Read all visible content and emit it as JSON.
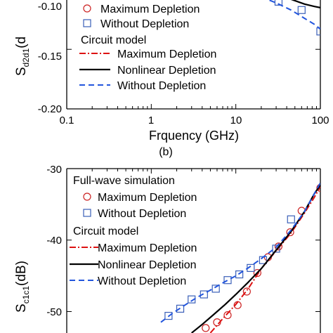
{
  "chart_data": [
    {
      "type": "line",
      "panel_label": "(b)",
      "xlabel": "Frquency (GHz)",
      "ylabel_main": "S",
      "ylabel_sub": "d2d1",
      "ylabel_unit_visible": "(d",
      "x_scale": "log",
      "xlim": [
        0.1,
        100
      ],
      "ylim": [
        -0.2,
        -0.085
      ],
      "x_ticks": [
        "0.1",
        "1",
        "10",
        "100"
      ],
      "y_ticks": [
        "-0.10",
        "-0.15",
        "-0.20"
      ],
      "legend": {
        "group1_title": "",
        "group1": [
          "Maximum Depletion",
          "Without Depletion"
        ],
        "group2_title": "Circuit model",
        "group2": [
          "Maximum Depletion",
          "Nonlinear Depletion",
          "Without Depletion"
        ]
      },
      "series": [
        {
          "name": "Maximum Depletion",
          "kind": "full-wave",
          "marker": "circle",
          "color": "#cc2222",
          "x": [
            80
          ],
          "y": [
            -0.097
          ]
        },
        {
          "name": "Without Depletion",
          "kind": "full-wave",
          "marker": "square",
          "color": "#3a5fb8",
          "x": [
            10,
            18,
            32,
            60,
            100
          ],
          "y": [
            -0.096,
            -0.104,
            -0.11,
            -0.117,
            -0.135
          ]
        },
        {
          "name": "Maximum Depletion",
          "kind": "circuit",
          "style": "dash-dot",
          "color": "#dd1111",
          "x": [
            40,
            55,
            75,
            100
          ],
          "y": [
            -0.094,
            -0.099,
            -0.103,
            -0.107
          ]
        },
        {
          "name": "Nonlinear Depletion",
          "kind": "circuit",
          "style": "solid",
          "color": "#000000",
          "x": [
            12,
            20,
            30,
            45,
            65,
            85,
            100
          ],
          "y": [
            -0.092,
            -0.097,
            -0.102,
            -0.108,
            -0.112,
            -0.114,
            -0.115
          ]
        },
        {
          "name": "Without Depletion",
          "kind": "circuit",
          "style": "dashed",
          "color": "#2255dd",
          "x": [
            10,
            14,
            20,
            30,
            45,
            65,
            85,
            100
          ],
          "y": [
            -0.097,
            -0.102,
            -0.106,
            -0.111,
            -0.117,
            -0.124,
            -0.129,
            -0.133
          ]
        }
      ]
    },
    {
      "type": "line",
      "ylabel_main": "S",
      "ylabel_sub": "c1c1",
      "ylabel_unit": "(dB)",
      "x_scale": "log",
      "xlim": [
        0.1,
        100
      ],
      "ylim": [
        -53,
        -30
      ],
      "y_ticks": [
        "-30",
        "-40",
        "-50"
      ],
      "legend": {
        "group1_title": "Full-wave simulation",
        "group1": [
          "Maximum Depletion",
          "Without Depletion"
        ],
        "group2_title": "Circuit model",
        "group2": [
          "Maximum Depletion",
          "Nonlinear Depletion",
          "Without Depletion"
        ]
      },
      "series": [
        {
          "name": "Maximum Depletion",
          "kind": "full-wave",
          "marker": "circle",
          "color": "#cc2222",
          "x": [
            4.4,
            6.0,
            8.0,
            10.5,
            13.5,
            18.0,
            24.0,
            32.0,
            44.0,
            60.0,
            100.0
          ],
          "y": [
            -52.3,
            -51.5,
            -50.5,
            -49.1,
            -47.2,
            -44.6,
            -42.4,
            -40.9,
            -38.9,
            -35.9,
            -32.7
          ]
        },
        {
          "name": "Without Depletion",
          "kind": "full-wave",
          "marker": "square",
          "color": "#3a5fb8",
          "x": [
            1.6,
            2.2,
            3.0,
            4.2,
            5.8,
            8.0,
            11.0,
            15.0,
            21.0,
            30.0,
            45.0
          ],
          "y": [
            -50.6,
            -49.6,
            -48.3,
            -47.6,
            -46.8,
            -45.6,
            -44.8,
            -43.9,
            -42.8,
            -41.2,
            -37.1
          ]
        },
        {
          "name": "Maximum Depletion",
          "kind": "circuit",
          "style": "dash-dot",
          "color": "#dd1111",
          "x": [
            5.0,
            7.0,
            10.0,
            14.0,
            20.0,
            30.0,
            45.0,
            65.0,
            85.0,
            100.0
          ],
          "y": [
            -53.0,
            -51.0,
            -49.0,
            -46.8,
            -44.0,
            -41.5,
            -39.0,
            -36.2,
            -34.0,
            -32.5
          ]
        },
        {
          "name": "Nonlinear Depletion",
          "kind": "circuit",
          "style": "solid",
          "color": "#000000",
          "x": [
            3.0,
            4.0,
            5.5,
            7.5,
            10.0,
            14.0,
            20.0,
            30.0,
            45.0,
            65.0,
            85.0,
            100.0
          ],
          "y": [
            -53.0,
            -51.8,
            -50.4,
            -49.0,
            -47.6,
            -45.9,
            -44.0,
            -41.4,
            -38.8,
            -36.0,
            -33.5,
            -32.3
          ]
        },
        {
          "name": "Without Depletion",
          "kind": "circuit",
          "style": "dashed",
          "color": "#2255dd",
          "x": [
            1.3,
            1.8,
            2.5,
            3.5,
            5.0,
            7.0,
            10.0,
            14.0,
            20.0,
            30.0,
            45.0,
            65.0,
            85.0,
            100.0
          ],
          "y": [
            -51.5,
            -50.2,
            -49.1,
            -48.0,
            -47.0,
            -46.0,
            -45.0,
            -43.9,
            -42.6,
            -41.0,
            -38.6,
            -36.0,
            -33.5,
            -32.0
          ]
        }
      ]
    }
  ]
}
